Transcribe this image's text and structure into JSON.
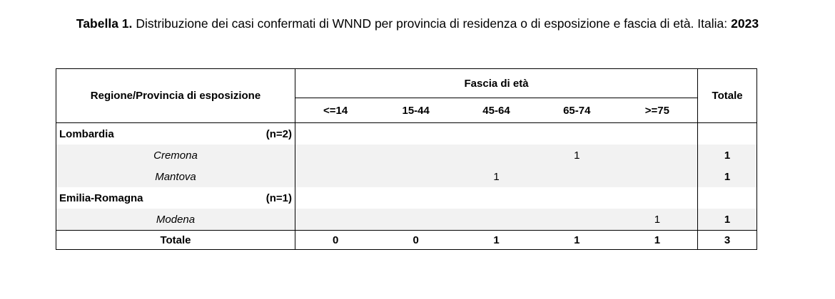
{
  "title": {
    "label": "Tabella 1.",
    "text": "Distribuzione dei casi confermati di WNND per provincia di residenza o di esposizione e fascia di età. Italia:",
    "year": "2023"
  },
  "table": {
    "header": {
      "region": "Regione/Provincia di esposizione",
      "group": "Fascia di età",
      "total": "Totale",
      "age_groups": [
        "<=14",
        "15-44",
        "45-64",
        "65-74",
        ">=75"
      ]
    },
    "regions": [
      {
        "name": "Lombardia",
        "n": "(n=2)",
        "provinces": [
          {
            "name": "Cremona",
            "counts": [
              null,
              null,
              null,
              1,
              null
            ],
            "total": 1
          },
          {
            "name": "Mantova",
            "counts": [
              null,
              null,
              1,
              null,
              null
            ],
            "total": 1
          }
        ]
      },
      {
        "name": "Emilia-Romagna",
        "n": "(n=1)",
        "provinces": [
          {
            "name": "Modena",
            "counts": [
              null,
              null,
              null,
              null,
              1
            ],
            "total": 1
          }
        ]
      }
    ],
    "totals": {
      "label": "Totale",
      "counts": [
        0,
        0,
        1,
        1,
        1
      ],
      "total": 3
    }
  }
}
